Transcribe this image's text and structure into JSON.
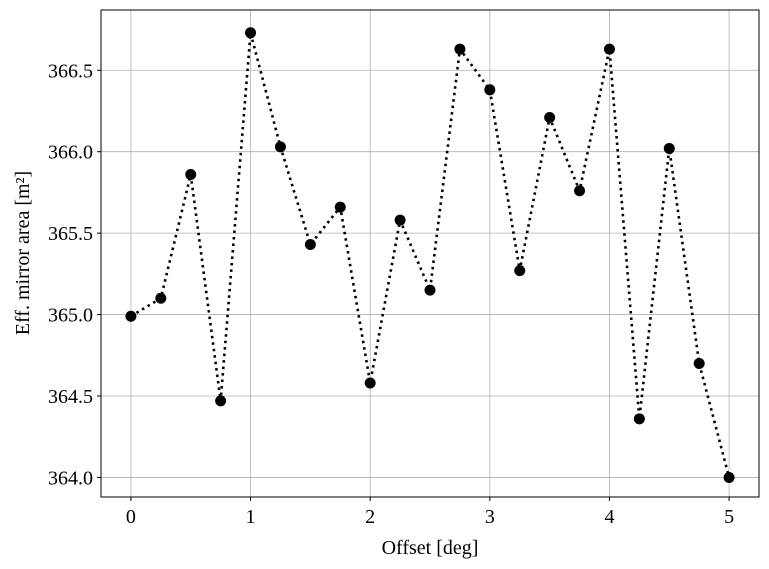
{
  "chart_data": {
    "type": "line",
    "title": "",
    "xlabel": "Offset [deg]",
    "ylabel": "Eff. mirror area [m²]",
    "xlim": [
      -0.25,
      5.25
    ],
    "ylim": [
      363.88,
      366.87
    ],
    "grid": true,
    "xticks": [
      "0",
      "1",
      "2",
      "3",
      "4",
      "5"
    ],
    "yticks": [
      "364.0",
      "364.5",
      "365.0",
      "365.5",
      "366.0",
      "366.5"
    ],
    "line_style": "dotted",
    "marker": "circle",
    "color": "#000000",
    "x": [
      0,
      0.25,
      0.5,
      0.75,
      1.0,
      1.25,
      1.5,
      1.75,
      2.0,
      2.25,
      2.5,
      2.75,
      3.0,
      3.25,
      3.5,
      3.75,
      4.0,
      4.25,
      4.5,
      4.75,
      5.0
    ],
    "y": [
      364.99,
      365.1,
      365.86,
      364.47,
      366.73,
      366.03,
      365.43,
      365.66,
      364.58,
      365.58,
      365.15,
      366.63,
      366.38,
      365.27,
      366.21,
      365.76,
      366.63,
      364.36,
      366.02,
      364.7,
      364.0
    ]
  }
}
